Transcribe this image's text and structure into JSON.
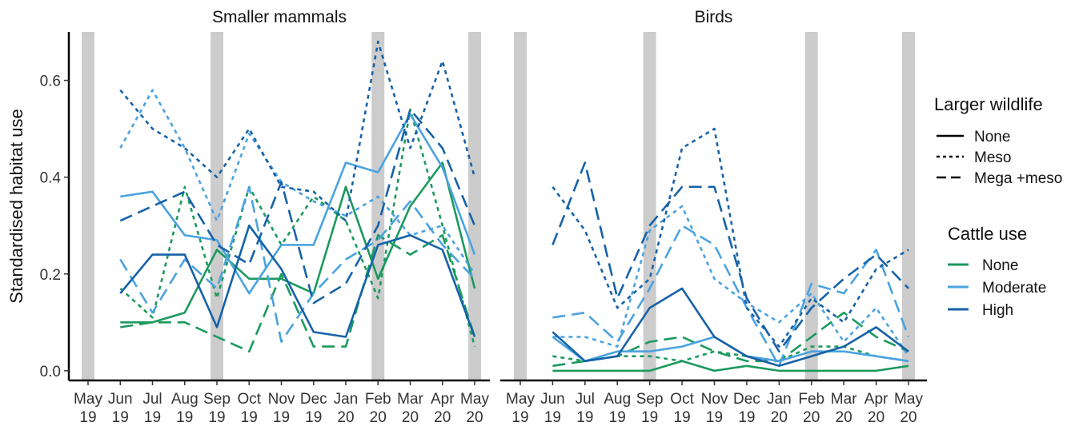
{
  "chart_data": {
    "type": "line",
    "ylabel": "Standardised habitat use",
    "ylim": [
      -0.02,
      0.7
    ],
    "yticks": [
      0.0,
      0.2,
      0.4,
      0.6
    ],
    "ytick_labels": [
      "0.0",
      "0.2",
      "0.4",
      "0.6"
    ],
    "x": [
      "May 19",
      "Jun 19",
      "Jul 19",
      "Aug 19",
      "Sep 19",
      "Oct 19",
      "Nov 19",
      "Dec 19",
      "Jan 20",
      "Feb 20",
      "Mar 20",
      "Apr 20",
      "May 20"
    ],
    "x_tick_labels": [
      {
        "top": "May",
        "bottom": "19"
      },
      {
        "top": "Jun",
        "bottom": "19"
      },
      {
        "top": "Jul",
        "bottom": "19"
      },
      {
        "top": "Aug",
        "bottom": "19"
      },
      {
        "top": "Sep",
        "bottom": "19"
      },
      {
        "top": "Oct",
        "bottom": "19"
      },
      {
        "top": "Nov",
        "bottom": "19"
      },
      {
        "top": "Dec",
        "bottom": "19"
      },
      {
        "top": "Jan",
        "bottom": "20"
      },
      {
        "top": "Feb",
        "bottom": "20"
      },
      {
        "top": "Mar",
        "bottom": "20"
      },
      {
        "top": "Apr",
        "bottom": "20"
      },
      {
        "top": "May",
        "bottom": "20"
      }
    ],
    "shaded_months": [
      "May 19",
      "Sep 19",
      "Feb 20",
      "May 20"
    ],
    "grid": false,
    "legend_position": "right",
    "legend": {
      "linetype_title": "Larger wildlife",
      "linetype_entries": [
        "None",
        "Meso",
        "Mega +meso"
      ],
      "colour_title": "Cattle use",
      "colour_entries": [
        "None",
        "Moderate",
        "High"
      ]
    },
    "colors": {
      "None": "#1b9a5e",
      "Moderate": "#4aa3e0",
      "High": "#1762a8"
    },
    "linetypes": {
      "None": "solid",
      "Meso": "dotted",
      "Mega +meso": "dashed"
    },
    "panels": [
      {
        "title": "Smaller mammals",
        "series": [
          {
            "cattle": "None",
            "wildlife": "None",
            "x_start": 1,
            "values": [
              0.1,
              0.1,
              0.12,
              0.25,
              0.19,
              0.19,
              0.16,
              0.38,
              0.19,
              0.34,
              0.43,
              0.17
            ]
          },
          {
            "cattle": "None",
            "wildlife": "Meso",
            "x_start": 1,
            "values": [
              0.17,
              0.11,
              0.38,
              0.15,
              0.38,
              0.26,
              0.36,
              0.31,
              0.15,
              0.54,
              0.3,
              0.05
            ]
          },
          {
            "cattle": "None",
            "wildlife": "Mega +meso",
            "x_start": 1,
            "values": [
              0.09,
              0.1,
              0.1,
              0.07,
              0.04,
              0.2,
              0.05,
              0.05,
              0.28,
              0.24,
              0.28,
              0.07
            ]
          },
          {
            "cattle": "Moderate",
            "wildlife": "None",
            "x_start": 1,
            "values": [
              0.36,
              0.37,
              0.28,
              0.27,
              0.16,
              0.26,
              0.26,
              0.43,
              0.41,
              0.53,
              0.42,
              0.24
            ]
          },
          {
            "cattle": "Moderate",
            "wildlife": "Meso",
            "x_start": 1,
            "values": [
              0.46,
              0.58,
              0.46,
              0.31,
              0.49,
              0.39,
              0.35,
              0.32,
              0.36,
              0.28,
              0.3,
              0.2
            ]
          },
          {
            "cattle": "Moderate",
            "wildlife": "Mega +meso",
            "x_start": 1,
            "values": [
              0.23,
              0.12,
              0.23,
              0.17,
              0.38,
              0.06,
              0.16,
              0.23,
              0.27,
              0.35,
              0.26,
              0.19
            ]
          },
          {
            "cattle": "High",
            "wildlife": "None",
            "x_start": 1,
            "values": [
              0.16,
              0.24,
              0.24,
              0.09,
              0.3,
              0.21,
              0.08,
              0.07,
              0.26,
              0.28,
              0.25,
              0.07
            ]
          },
          {
            "cattle": "High",
            "wildlife": "Meso",
            "x_start": 1,
            "values": [
              0.58,
              0.5,
              0.46,
              0.4,
              0.5,
              0.38,
              0.37,
              0.31,
              0.68,
              0.46,
              0.64,
              0.4
            ]
          },
          {
            "cattle": "High",
            "wildlife": "Mega +meso",
            "x_start": 1,
            "values": [
              0.31,
              0.34,
              0.37,
              0.26,
              0.22,
              0.39,
              0.14,
              0.18,
              0.3,
              0.54,
              0.46,
              0.3
            ]
          }
        ]
      },
      {
        "title": "Birds",
        "series": [
          {
            "cattle": "None",
            "wildlife": "None",
            "x_start": 1,
            "values": [
              0.0,
              0.0,
              0.0,
              0.0,
              0.02,
              0.0,
              0.01,
              0.0,
              0.0,
              0.0,
              0.0,
              0.01
            ]
          },
          {
            "cattle": "None",
            "wildlife": "Meso",
            "x_start": 1,
            "values": [
              0.03,
              0.02,
              0.03,
              0.03,
              0.02,
              0.04,
              0.03,
              0.02,
              0.05,
              0.05,
              0.03,
              0.02
            ]
          },
          {
            "cattle": "None",
            "wildlife": "Mega +meso",
            "x_start": 1,
            "values": [
              0.01,
              0.02,
              0.03,
              0.06,
              0.07,
              0.04,
              0.02,
              0.02,
              0.07,
              0.12,
              0.07,
              0.04
            ]
          },
          {
            "cattle": "Moderate",
            "wildlife": "None",
            "x_start": 1,
            "values": [
              0.07,
              0.02,
              0.04,
              0.04,
              0.05,
              0.07,
              0.03,
              0.02,
              0.04,
              0.04,
              0.03,
              0.02
            ]
          },
          {
            "cattle": "Moderate",
            "wildlife": "Meso",
            "x_start": 1,
            "values": [
              0.07,
              0.07,
              0.05,
              0.29,
              0.34,
              0.19,
              0.14,
              0.1,
              0.16,
              0.06,
              0.13,
              0.03
            ]
          },
          {
            "cattle": "Moderate",
            "wildlife": "Mega +meso",
            "x_start": 1,
            "values": [
              0.11,
              0.12,
              0.06,
              0.17,
              0.3,
              0.26,
              0.13,
              0.01,
              0.18,
              0.16,
              0.25,
              0.07
            ]
          },
          {
            "cattle": "High",
            "wildlife": "None",
            "x_start": 1,
            "values": [
              0.08,
              0.02,
              0.03,
              0.13,
              0.17,
              0.07,
              0.03,
              0.01,
              0.03,
              0.05,
              0.09,
              0.04
            ]
          },
          {
            "cattle": "High",
            "wildlife": "Meso",
            "x_start": 1,
            "values": [
              0.38,
              0.29,
              0.13,
              0.19,
              0.46,
              0.5,
              0.13,
              0.05,
              0.15,
              0.1,
              0.21,
              0.25
            ]
          },
          {
            "cattle": "High",
            "wildlife": "Mega +meso",
            "x_start": 1,
            "values": [
              0.26,
              0.43,
              0.15,
              0.3,
              0.38,
              0.38,
              0.15,
              0.04,
              0.13,
              0.19,
              0.24,
              0.17
            ]
          }
        ]
      }
    ]
  }
}
